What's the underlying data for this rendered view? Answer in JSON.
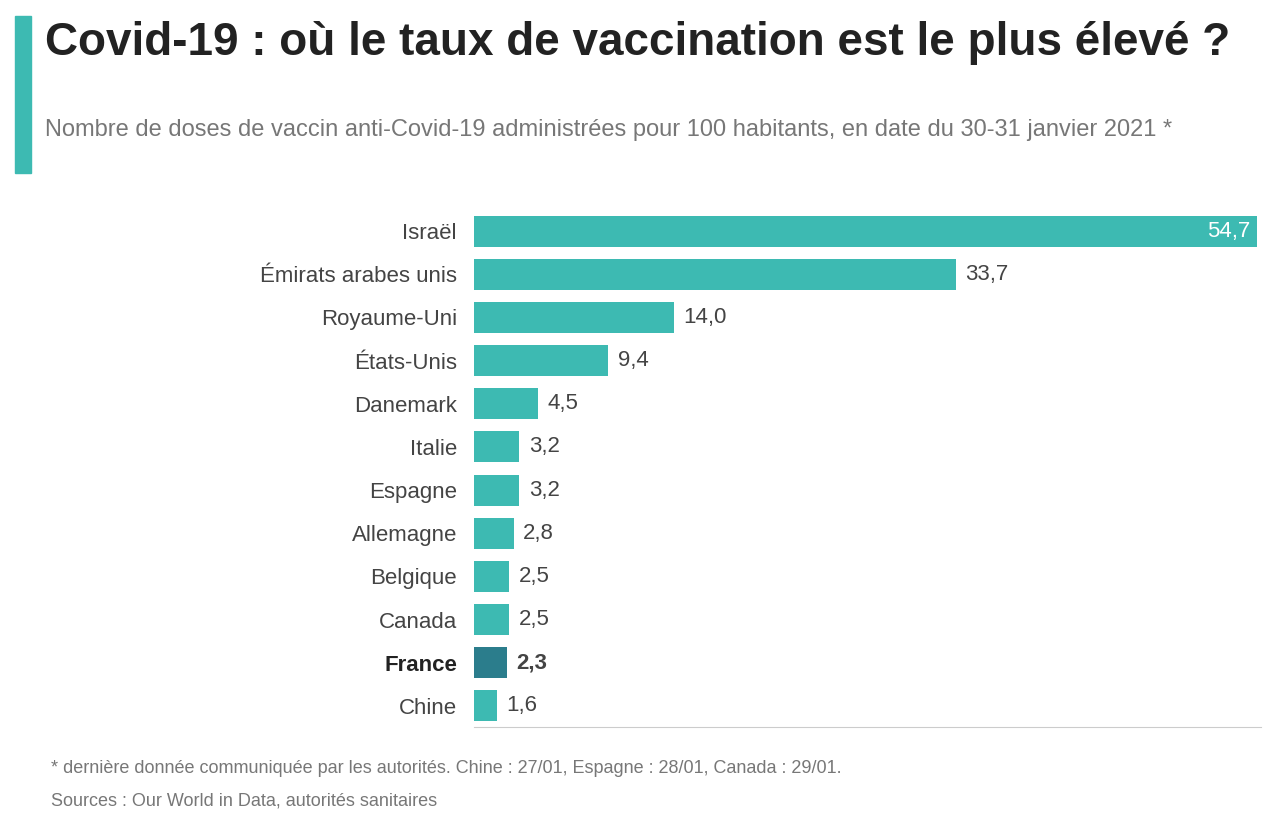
{
  "chart_data": {
    "type": "bar",
    "orientation": "horizontal",
    "title": "Covid-19 : où le taux de vaccination est le plus élevé ?",
    "subtitle": "Nombre de doses de vaccin anti-Covid-19 administrées pour 100 habitants, en date du 30-31 janvier 2021 *",
    "categories": [
      "Israël",
      "Émirats arabes unis",
      "Royaume-Uni",
      "États-Unis",
      "Danemark",
      "Italie",
      "Espagne",
      "Allemagne",
      "Belgique",
      "Canada",
      "France",
      "Chine"
    ],
    "values": [
      54.7,
      33.7,
      14.0,
      9.4,
      4.5,
      3.2,
      3.2,
      2.8,
      2.5,
      2.5,
      2.3,
      1.6
    ],
    "value_labels": [
      "54,7",
      "33,7",
      "14,0",
      "9,4",
      "4,5",
      "3,2",
      "3,2",
      "2,8",
      "2,5",
      "2,5",
      "2,3",
      "1,6"
    ],
    "colors": [
      "#3dbab2",
      "#3dbab2",
      "#3dbab2",
      "#3dbab2",
      "#3dbab2",
      "#3dbab2",
      "#3dbab2",
      "#3dbab2",
      "#3dbab2",
      "#3dbab2",
      "#2b7d8c",
      "#3dbab2"
    ],
    "xlim": [
      0,
      55
    ],
    "xticks": [],
    "data_labels": true,
    "tick_labels": "y",
    "grid": false,
    "footnote": "* dernière donnée communiquée par les autorités. Chine : 27/01, Espagne : 28/01, Canada : 29/01.",
    "source": "Sources : Our World in Data, autorités sanitaires"
  }
}
